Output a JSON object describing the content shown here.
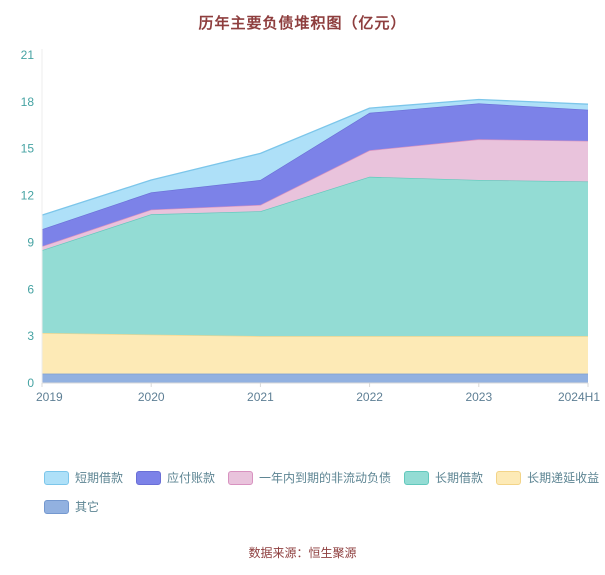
{
  "title": "历年主要负债堆积图（亿元）",
  "footer": "数据来源：恒生聚源",
  "chart_data": {
    "type": "area",
    "stacked": true,
    "title": "历年主要负债堆积图（亿元）",
    "x": [
      "2019",
      "2020",
      "2021",
      "2022",
      "2023",
      "2024H1"
    ],
    "series": [
      {
        "name": "其它",
        "color": "#92b1e0",
        "line": "#7498cf",
        "values": [
          0.6,
          0.6,
          0.6,
          0.6,
          0.6,
          0.6
        ]
      },
      {
        "name": "长期递延收益",
        "color": "#fdeab6",
        "line": "#f3d488",
        "values": [
          2.6,
          2.5,
          2.4,
          2.4,
          2.4,
          2.4
        ]
      },
      {
        "name": "长期借款",
        "color": "#93dcd4",
        "line": "#62c8bc",
        "values": [
          5.3,
          7.7,
          8.0,
          10.2,
          10.0,
          9.9
        ]
      },
      {
        "name": "一年内到期的非流动负债",
        "color": "#e9c3dc",
        "line": "#d892c0",
        "values": [
          0.25,
          0.3,
          0.4,
          1.7,
          2.6,
          2.6
        ]
      },
      {
        "name": "应付账款",
        "color": "#7c82e8",
        "line": "#6a6fd6",
        "values": [
          1.1,
          1.1,
          1.6,
          2.4,
          2.3,
          2.0
        ]
      },
      {
        "name": "短期借款",
        "color": "#aee0f8",
        "line": "#7cc6ea",
        "values": [
          0.9,
          0.8,
          1.7,
          0.3,
          0.25,
          0.35
        ]
      }
    ],
    "legend_order": [
      "短期借款",
      "应付账款",
      "一年内到期的非流动负债",
      "长期借款",
      "长期递延收益",
      "其它"
    ],
    "legend_position": "bottom",
    "grid": false,
    "xlabel": "",
    "ylabel": "",
    "ylim": [
      0,
      21
    ],
    "yticks": [
      0,
      3,
      6,
      9,
      12,
      15,
      18,
      21
    ],
    "axis_colors": {
      "y_ticks": "#46a3a3",
      "x_ticks": "#5e7f95",
      "axis_line": "#d9d9d9"
    }
  }
}
